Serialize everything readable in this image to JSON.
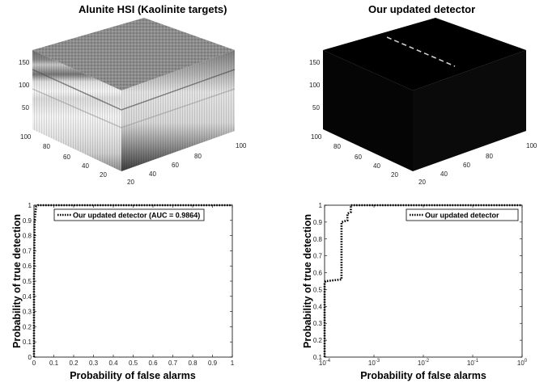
{
  "chart_data": [
    {
      "type": "image3d",
      "title": "Alunite HSI (Kaolinite targets)",
      "z_ticks": [
        "50",
        "100",
        "150"
      ],
      "y_ticks": [
        "20",
        "40",
        "60",
        "80",
        "100"
      ],
      "x_ticks": [
        "20",
        "40",
        "60",
        "80",
        "100"
      ],
      "colormap": "gray"
    },
    {
      "type": "image3d",
      "title": "Our updated detector",
      "z_ticks": [
        "50",
        "100",
        "150"
      ],
      "y_ticks": [
        "20",
        "40",
        "60",
        "80",
        "100"
      ],
      "x_ticks": [
        "20",
        "40",
        "60",
        "80",
        "100"
      ],
      "colormap": "gray"
    },
    {
      "type": "line",
      "title": "",
      "xlabel": "Probability of false alarms",
      "ylabel": "Probability of true detection",
      "xlim": [
        0,
        1
      ],
      "ylim": [
        0,
        1
      ],
      "x_ticks": [
        "0",
        "0.1",
        "0.2",
        "0.3",
        "0.4",
        "0.5",
        "0.6",
        "0.7",
        "0.8",
        "0.9",
        "1"
      ],
      "y_ticks": [
        "0",
        "0.1",
        "0.2",
        "0.3",
        "0.4",
        "0.5",
        "0.6",
        "0.7",
        "0.8",
        "0.9",
        "1"
      ],
      "legend_position": "top-right",
      "series": [
        {
          "name": "Our updated detector (AUC = 0.9864)",
          "line_style": "dotted",
          "x": [
            0,
            0,
            0.001,
            0.003,
            0.005,
            0.01,
            0.02,
            0.05,
            1
          ],
          "y": [
            0,
            0.55,
            0.56,
            0.9,
            0.92,
            0.99,
            1,
            1,
            1
          ]
        }
      ]
    },
    {
      "type": "line",
      "title": "",
      "xlabel": "Probability of false alarms",
      "ylabel": "Probability of true detection",
      "xscale": "log",
      "xlim": [
        0.0001,
        1
      ],
      "ylim": [
        0.1,
        1
      ],
      "x_ticks": [
        "10^-4",
        "10^-3",
        "10^-2",
        "10^-1",
        "10^0"
      ],
      "y_ticks": [
        "0.1",
        "0.2",
        "0.3",
        "0.4",
        "0.5",
        "0.6",
        "0.7",
        "0.8",
        "0.9",
        "1"
      ],
      "legend_position": "top-right",
      "series": [
        {
          "name": "Our updated detector",
          "line_style": "dotted",
          "x": [
            0.0001,
            0.0001,
            0.0001,
            0.000105,
            0.00022,
            0.00022,
            0.00029,
            0.00029,
            0.00034,
            0.00034,
            1
          ],
          "y": [
            0.1,
            0.12,
            0.54,
            0.55,
            0.56,
            0.9,
            0.91,
            0.95,
            0.96,
            1,
            1
          ]
        }
      ]
    }
  ]
}
